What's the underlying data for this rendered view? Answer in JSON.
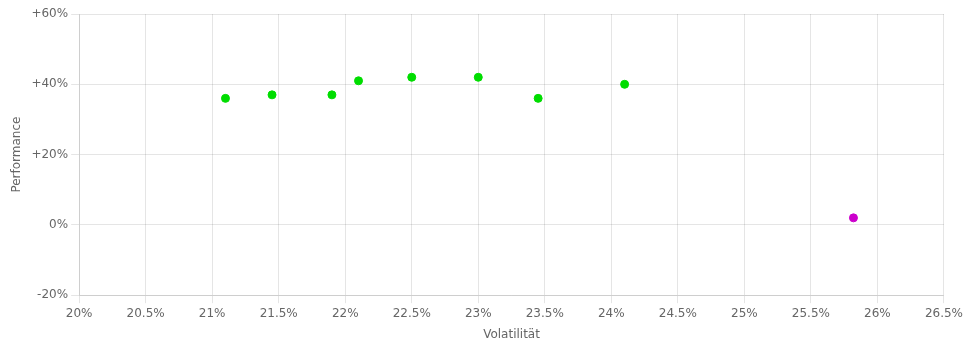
{
  "chart_data": {
    "type": "scatter",
    "xlabel": "Volatilität",
    "ylabel": "Performance",
    "series": [
      {
        "color": "#00dd00",
        "x": [
          21.1,
          21.45,
          21.9,
          22.1,
          22.5,
          23.0,
          23.45,
          24.1
        ],
        "values": [
          36,
          37,
          37,
          41,
          42,
          42,
          36,
          40
        ]
      },
      {
        "color": "#cc00cc",
        "x": [
          25.82
        ],
        "values": [
          2
        ]
      }
    ],
    "xlim": [
      20.0,
      26.5
    ],
    "ylim": [
      -20,
      60
    ],
    "xticks": [
      {
        "value": 20.0,
        "label": "20%"
      },
      {
        "value": 20.5,
        "label": "20.5%"
      },
      {
        "value": 21.0,
        "label": "21%"
      },
      {
        "value": 21.5,
        "label": "21.5%"
      },
      {
        "value": 22.0,
        "label": "22%"
      },
      {
        "value": 22.5,
        "label": "22.5%"
      },
      {
        "value": 23.0,
        "label": "23%"
      },
      {
        "value": 23.5,
        "label": "23.5%"
      },
      {
        "value": 24.0,
        "label": "24%"
      },
      {
        "value": 24.5,
        "label": "24.5%"
      },
      {
        "value": 25.0,
        "label": "25%"
      },
      {
        "value": 25.5,
        "label": "25.5%"
      },
      {
        "value": 26.0,
        "label": "26%"
      },
      {
        "value": 26.5,
        "label": "26.5%"
      }
    ],
    "yticks": [
      {
        "value": -20,
        "label": "-20%"
      },
      {
        "value": 0,
        "label": "0%"
      },
      {
        "value": 20,
        "label": "+20%"
      },
      {
        "value": 40,
        "label": "+40%"
      },
      {
        "value": 60,
        "label": "+60%"
      }
    ],
    "grid": true
  }
}
